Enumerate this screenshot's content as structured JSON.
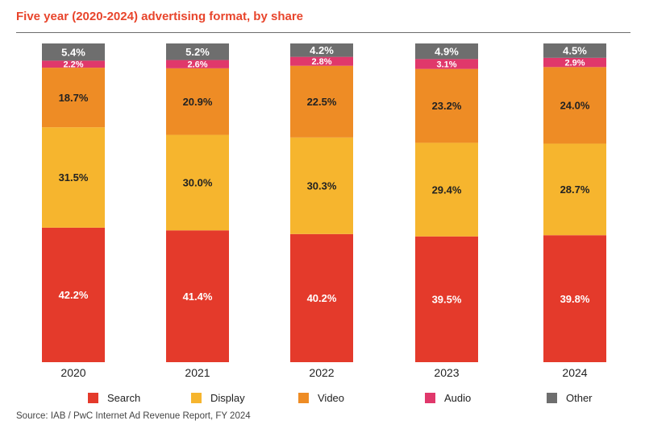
{
  "chart_data": {
    "type": "bar",
    "stacked": true,
    "percent_stacked": true,
    "title": "Five year (2020-2024) advertising format, by share",
    "categories": [
      "2020",
      "2021",
      "2022",
      "2023",
      "2024"
    ],
    "series": [
      {
        "name": "Search",
        "color": "#e43a2b",
        "label_color": "#ffffff",
        "values": [
          42.2,
          41.4,
          40.2,
          39.5,
          39.8
        ]
      },
      {
        "name": "Display",
        "color": "#f6b52e",
        "label_color": "#222222",
        "values": [
          31.5,
          30.0,
          30.3,
          29.4,
          28.7
        ]
      },
      {
        "name": "Video",
        "color": "#ee8c25",
        "label_color": "#222222",
        "values": [
          18.7,
          20.9,
          22.5,
          23.2,
          24.0
        ]
      },
      {
        "name": "Audio",
        "color": "#e0386b",
        "label_color": "#ffffff",
        "values": [
          2.2,
          2.6,
          2.8,
          3.1,
          2.9
        ]
      },
      {
        "name": "Other",
        "color": "#6e6e6e",
        "label_color": "#ffffff",
        "values": [
          5.4,
          5.2,
          4.2,
          4.9,
          4.5
        ]
      }
    ],
    "value_suffix": "%",
    "legend_position": "bottom",
    "grid": false,
    "source": "Source: IAB / PwC Internet Ad Revenue Report, FY 2024"
  }
}
